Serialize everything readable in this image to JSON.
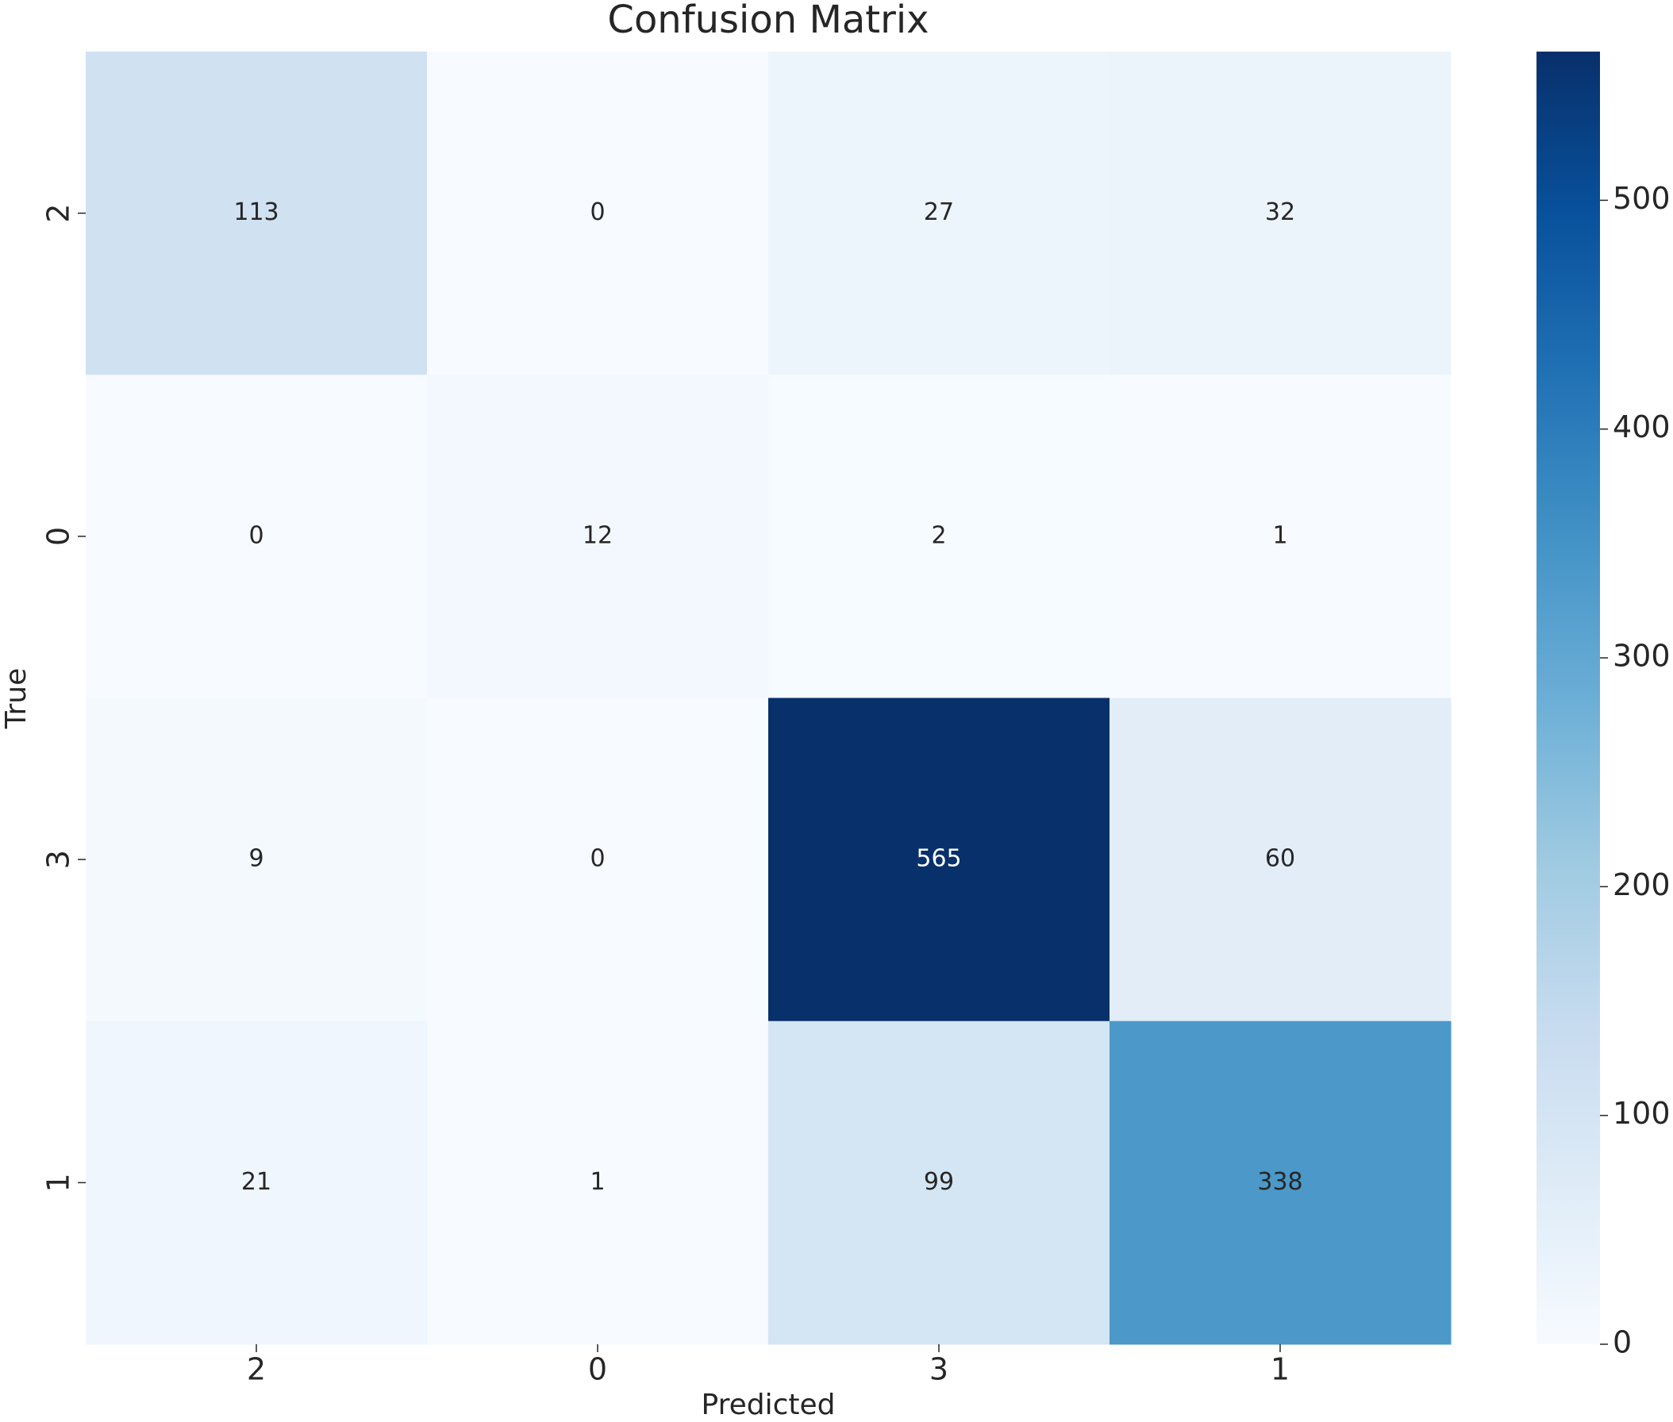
{
  "chart_data": {
    "type": "heatmap",
    "title": "Confusion Matrix",
    "x_label": "Predicted",
    "y_label": "True",
    "x_categories": [
      "2",
      "0",
      "3",
      "1"
    ],
    "y_categories": [
      "2",
      "0",
      "3",
      "1"
    ],
    "values": [
      [
        113,
        0,
        27,
        32
      ],
      [
        0,
        12,
        2,
        1
      ],
      [
        9,
        0,
        565,
        60
      ],
      [
        21,
        1,
        99,
        338
      ]
    ],
    "colormap": [
      "#f7fbff",
      "#deebf7",
      "#c6dbef",
      "#9ecae1",
      "#6baed6",
      "#4292c6",
      "#2171b5",
      "#08519c",
      "#08306b"
    ],
    "zlim": [
      0,
      565
    ],
    "zticks": [
      0,
      100,
      200,
      300,
      400,
      500
    ]
  }
}
